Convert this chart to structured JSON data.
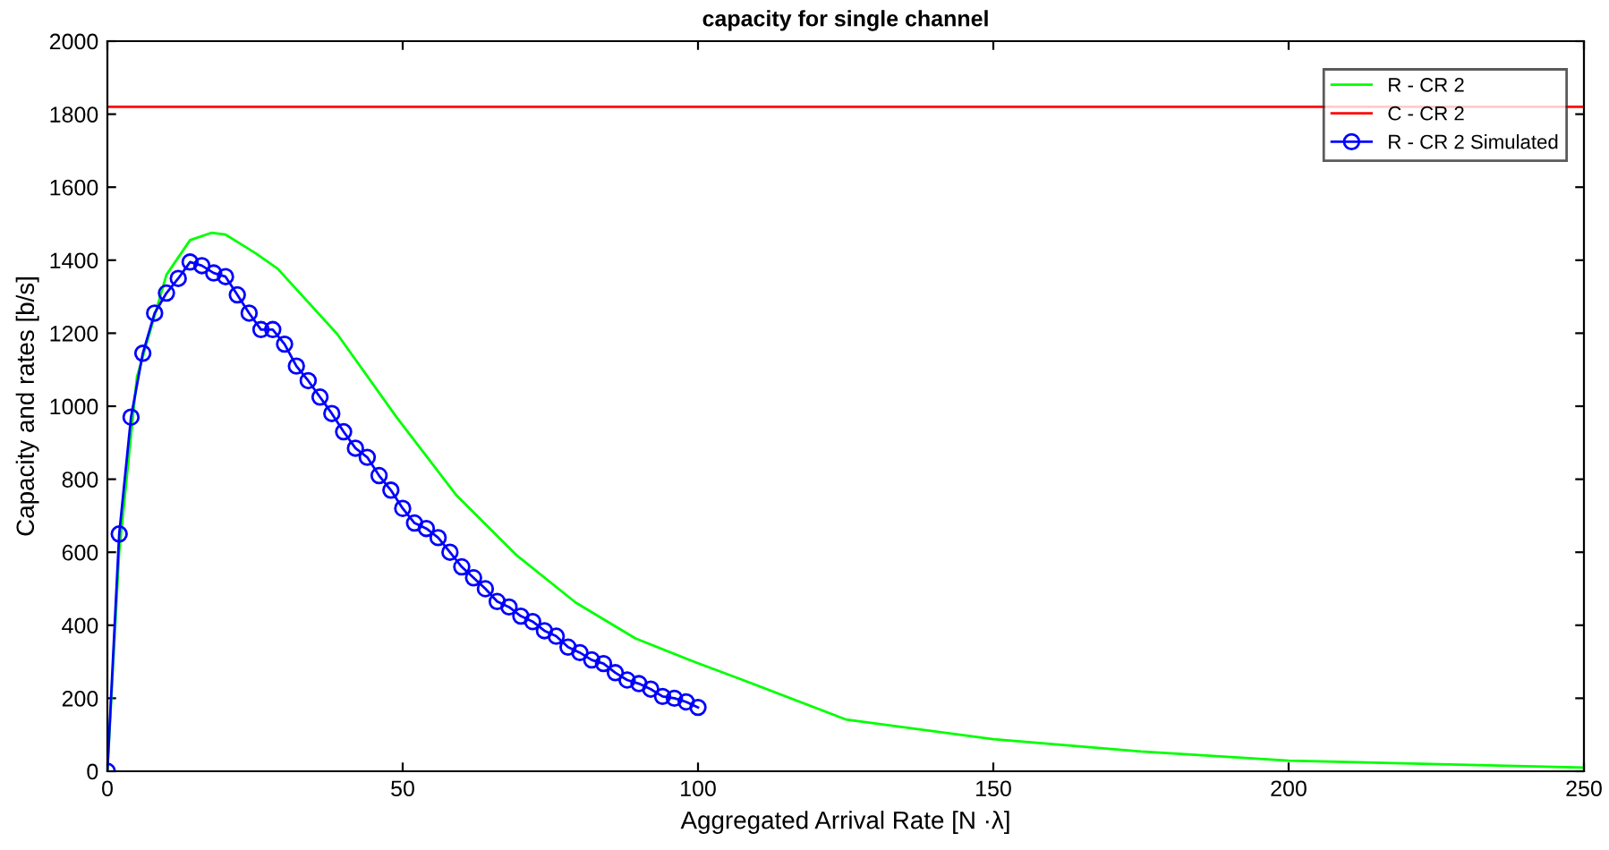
{
  "chart_data": {
    "type": "line",
    "title": "capacity for single channel",
    "xlabel": "Aggregated Arrival Rate [N ·λ]",
    "ylabel": "Capacity and rates [b/s]",
    "xlim": [
      0,
      250
    ],
    "ylim": [
      0,
      2000
    ],
    "xticks": [
      0,
      50,
      100,
      150,
      200,
      250
    ],
    "yticks": [
      0,
      200,
      400,
      600,
      800,
      1000,
      1200,
      1400,
      1600,
      1800,
      2000
    ],
    "grid": false,
    "legend": "top right",
    "series": [
      {
        "name": "R - CR 2",
        "color": "#00ff00",
        "marker": "none",
        "x": [
          0,
          2,
          5,
          10,
          14,
          17.6,
          20,
          25,
          28.8,
          38.9,
          49,
          59.1,
          69.2,
          79.3,
          89.4,
          99.5,
          107.6,
          125,
          150,
          175,
          200,
          250
        ],
        "values": [
          0,
          600,
          1080,
          1360,
          1455,
          1475,
          1470,
          1420,
          1377,
          1198,
          969,
          756,
          593,
          462,
          364,
          299,
          250,
          142,
          88,
          54,
          29,
          10
        ]
      },
      {
        "name": "C - CR 2",
        "color": "#ff0000",
        "marker": "none",
        "x": [
          0,
          250
        ],
        "values": [
          1820,
          1820
        ]
      },
      {
        "name": "R - CR 2 Simulated",
        "color": "#0000ff",
        "marker": "circle",
        "x": [
          0,
          2,
          4,
          6,
          8,
          10,
          12,
          14,
          16,
          18,
          20,
          22,
          24,
          26,
          28,
          30,
          32,
          34,
          36,
          38,
          40,
          42,
          44,
          46,
          48,
          50,
          52,
          54,
          56,
          58,
          60,
          62,
          64,
          66,
          68,
          70,
          72,
          74,
          76,
          78,
          80,
          82,
          84,
          86,
          88,
          90,
          92,
          94,
          96,
          98,
          100
        ],
        "values": [
          0,
          650,
          970,
          1145,
          1255,
          1310,
          1350,
          1395,
          1385,
          1365,
          1355,
          1305,
          1255,
          1210,
          1210,
          1170,
          1110,
          1070,
          1025,
          980,
          930,
          885,
          860,
          810,
          770,
          720,
          680,
          665,
          640,
          600,
          560,
          530,
          500,
          465,
          450,
          425,
          410,
          385,
          370,
          340,
          325,
          305,
          295,
          270,
          250,
          240,
          225,
          205,
          200,
          190,
          175
        ]
      }
    ]
  }
}
